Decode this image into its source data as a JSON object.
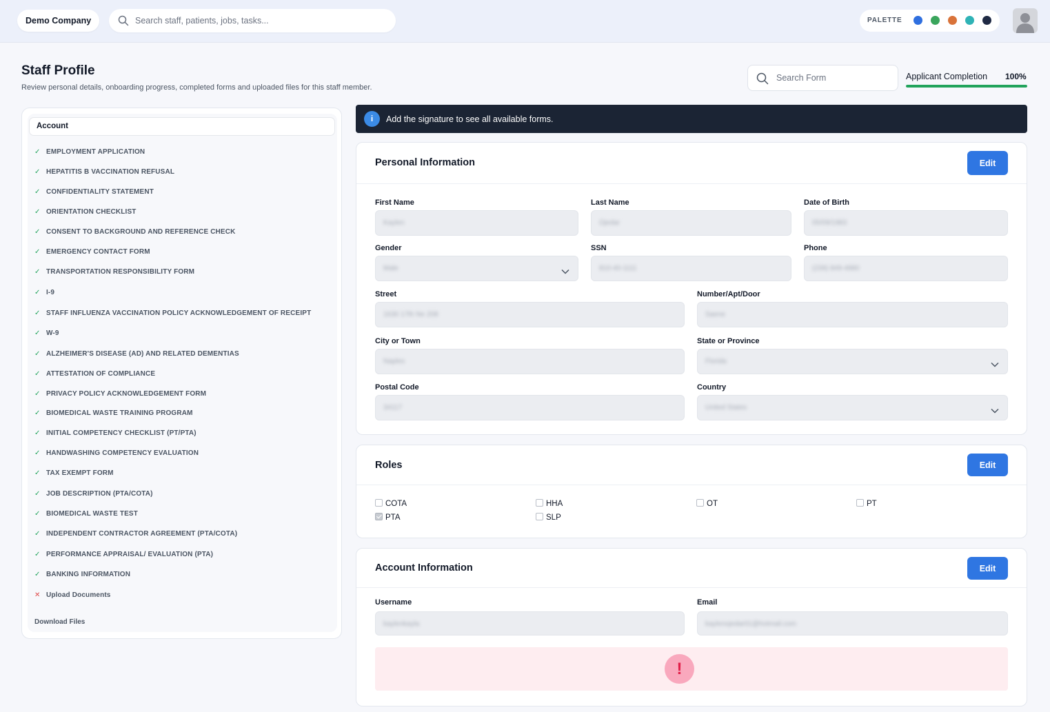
{
  "topbar": {
    "company": "Demo Company",
    "search_placeholder": "Search staff, patients, jobs, tasks...",
    "palette_label": "PALETTE",
    "palette_colors": [
      "#2f6fdf",
      "#3aa55c",
      "#d9733a",
      "#2fb3b6",
      "#1f2a44"
    ]
  },
  "header": {
    "title": "Staff Profile",
    "subtitle": "Review personal details, onboarding progress, completed forms and uploaded files for this staff member.",
    "form_search_placeholder": "Search Form",
    "completion_label": "Applicant Completion",
    "completion_value": "100%",
    "completion_fraction": 1.0
  },
  "sidebar": {
    "account_label": "Account",
    "items": [
      {
        "label": "EMPLOYMENT APPLICATION",
        "status": "done"
      },
      {
        "label": "HEPATITIS B VACCINATION REFUSAL",
        "status": "done"
      },
      {
        "label": "CONFIDENTIALITY STATEMENT",
        "status": "done"
      },
      {
        "label": "ORIENTATION CHECKLIST",
        "status": "done"
      },
      {
        "label": "CONSENT TO BACKGROUND AND REFERENCE CHECK",
        "status": "done"
      },
      {
        "label": "EMERGENCY CONTACT FORM",
        "status": "done"
      },
      {
        "label": "TRANSPORTATION RESPONSIBILITY FORM",
        "status": "done"
      },
      {
        "label": "I-9",
        "status": "done"
      },
      {
        "label": "STAFF INFLUENZA VACCINATION POLICY ACKNOWLEDGEMENT OF RECEIPT",
        "status": "done"
      },
      {
        "label": "W-9",
        "status": "done"
      },
      {
        "label": "ALZHEIMER'S DISEASE (AD) AND RELATED DEMENTIAS",
        "status": "done"
      },
      {
        "label": "ATTESTATION OF COMPLIANCE",
        "status": "done"
      },
      {
        "label": "PRIVACY POLICY ACKNOWLEDGEMENT FORM",
        "status": "done"
      },
      {
        "label": "BIOMEDICAL WASTE TRAINING PROGRAM",
        "status": "done"
      },
      {
        "label": "INITIAL COMPETENCY CHECKLIST (PT/PTA)",
        "status": "done"
      },
      {
        "label": "HANDWASHING COMPETENCY EVALUATION",
        "status": "done"
      },
      {
        "label": "TAX EXEMPT FORM",
        "status": "done"
      },
      {
        "label": "JOB DESCRIPTION (PTA/COTA)",
        "status": "done"
      },
      {
        "label": "BIOMEDICAL WASTE TEST",
        "status": "done"
      },
      {
        "label": "INDEPENDENT CONTRACTOR AGREEMENT (PTA/COTA)",
        "status": "done"
      },
      {
        "label": "PERFORMANCE APPRAISAL/ EVALUATION (PTA)",
        "status": "done"
      },
      {
        "label": "BANKING INFORMATION",
        "status": "done"
      },
      {
        "label": "Upload Documents",
        "status": "missing"
      }
    ],
    "download_label": "Download Files"
  },
  "notice": {
    "icon": "i",
    "message": "Add the signature to see all available forms."
  },
  "personal": {
    "title": "Personal Information",
    "edit_label": "Edit",
    "first_name": {
      "label": "First Name",
      "value": "Kaylen"
    },
    "last_name": {
      "label": "Last Name",
      "value": "Ojedar"
    },
    "dob": {
      "label": "Date of Birth",
      "value": "05/09/1983"
    },
    "gender": {
      "label": "Gender",
      "value": "Male"
    },
    "ssn": {
      "label": "SSN",
      "value": "810-40-1111"
    },
    "phone": {
      "label": "Phone",
      "value": "(239) 849-4880"
    },
    "street": {
      "label": "Street",
      "value": "1630 17th Ne 208"
    },
    "apt": {
      "label": "Number/Apt/Door",
      "value": "Saene"
    },
    "city": {
      "label": "City or Town",
      "value": "Naples"
    },
    "state": {
      "label": "State or Province",
      "value": "Florida"
    },
    "postal": {
      "label": "Postal Code",
      "value": "34117"
    },
    "country": {
      "label": "Country",
      "value": "United States"
    }
  },
  "roles": {
    "title": "Roles",
    "edit_label": "Edit",
    "items": [
      {
        "label": "COTA",
        "checked": false
      },
      {
        "label": "HHA",
        "checked": false
      },
      {
        "label": "OT",
        "checked": false
      },
      {
        "label": "PT",
        "checked": false
      },
      {
        "label": "PTA",
        "checked": true
      },
      {
        "label": "SLP",
        "checked": false
      }
    ]
  },
  "account": {
    "title": "Account Information",
    "edit_label": "Edit",
    "username": {
      "label": "Username",
      "value": "kaylenkayla"
    },
    "email": {
      "label": "Email",
      "value": "kaylenojedar01@hotmail.com"
    },
    "alert_icon": "!"
  }
}
